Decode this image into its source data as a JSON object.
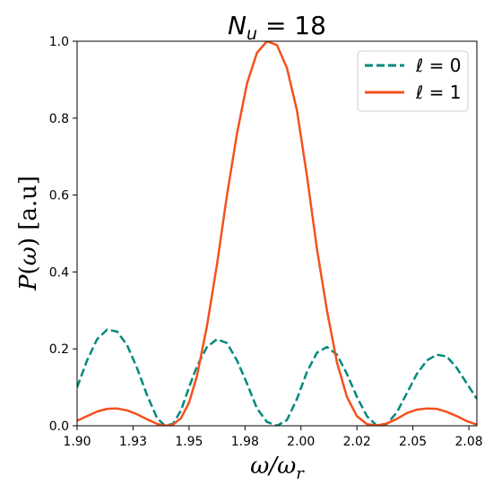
{
  "chart_data": {
    "type": "line",
    "title": "N_u = 18",
    "xlabel": "ω/ω_r",
    "ylabel": "P(ω)  [a.u]",
    "xlim": [
      1.9,
      2.1
    ],
    "ylim": [
      0.0,
      1.0
    ],
    "xticks": [
      "1.90",
      "1.93",
      "1.95",
      "1.98",
      "2.00",
      "2.02",
      "2.05",
      "2.08"
    ],
    "yticks": [
      "0.0",
      "0.2",
      "0.4",
      "0.6",
      "0.8",
      "1.0"
    ],
    "grid": false,
    "legend_position": "top-right",
    "series": [
      {
        "name": "ℓ = 0",
        "color": "#00897b",
        "style": "dashed",
        "x": [
          1.9,
          1.905,
          1.91,
          1.915,
          1.92,
          1.925,
          1.93,
          1.935,
          1.94,
          1.944,
          1.948,
          1.952,
          1.956,
          1.96,
          1.965,
          1.97,
          1.975,
          1.98,
          1.985,
          1.99,
          1.995,
          2.0,
          2.005,
          2.01,
          2.015,
          2.02,
          2.025,
          2.03,
          2.035,
          2.04,
          2.045,
          2.05,
          2.055,
          2.06,
          2.065,
          2.07,
          2.075,
          2.08,
          2.085,
          2.09,
          2.095,
          2.1
        ],
        "y": [
          0.1,
          0.17,
          0.225,
          0.25,
          0.245,
          0.21,
          0.15,
          0.08,
          0.02,
          0.0,
          0.005,
          0.04,
          0.1,
          0.155,
          0.205,
          0.225,
          0.215,
          0.17,
          0.11,
          0.045,
          0.01,
          0.0,
          0.015,
          0.07,
          0.14,
          0.19,
          0.205,
          0.185,
          0.135,
          0.075,
          0.025,
          0.0,
          0.005,
          0.035,
          0.085,
          0.135,
          0.17,
          0.185,
          0.18,
          0.15,
          0.11,
          0.07
        ]
      },
      {
        "name": "ℓ = 1",
        "color": "#f4511e",
        "style": "solid",
        "x": [
          1.9,
          1.905,
          1.91,
          1.915,
          1.92,
          1.925,
          1.93,
          1.935,
          1.94,
          1.944,
          1.948,
          1.952,
          1.956,
          1.96,
          1.965,
          1.97,
          1.975,
          1.98,
          1.985,
          1.99,
          1.995,
          2.0,
          2.005,
          2.01,
          2.015,
          2.02,
          2.025,
          2.03,
          2.035,
          2.04,
          2.045,
          2.05,
          2.055,
          2.06,
          2.065,
          2.07,
          2.075,
          2.08,
          2.085,
          2.09,
          2.095,
          2.1
        ],
        "y": [
          0.013,
          0.025,
          0.037,
          0.044,
          0.045,
          0.04,
          0.03,
          0.017,
          0.005,
          0.0,
          0.003,
          0.02,
          0.06,
          0.13,
          0.26,
          0.42,
          0.6,
          0.76,
          0.89,
          0.97,
          1.0,
          0.99,
          0.93,
          0.82,
          0.65,
          0.46,
          0.3,
          0.165,
          0.075,
          0.025,
          0.004,
          0.001,
          0.006,
          0.018,
          0.033,
          0.042,
          0.045,
          0.044,
          0.036,
          0.025,
          0.012,
          0.003
        ]
      }
    ]
  }
}
